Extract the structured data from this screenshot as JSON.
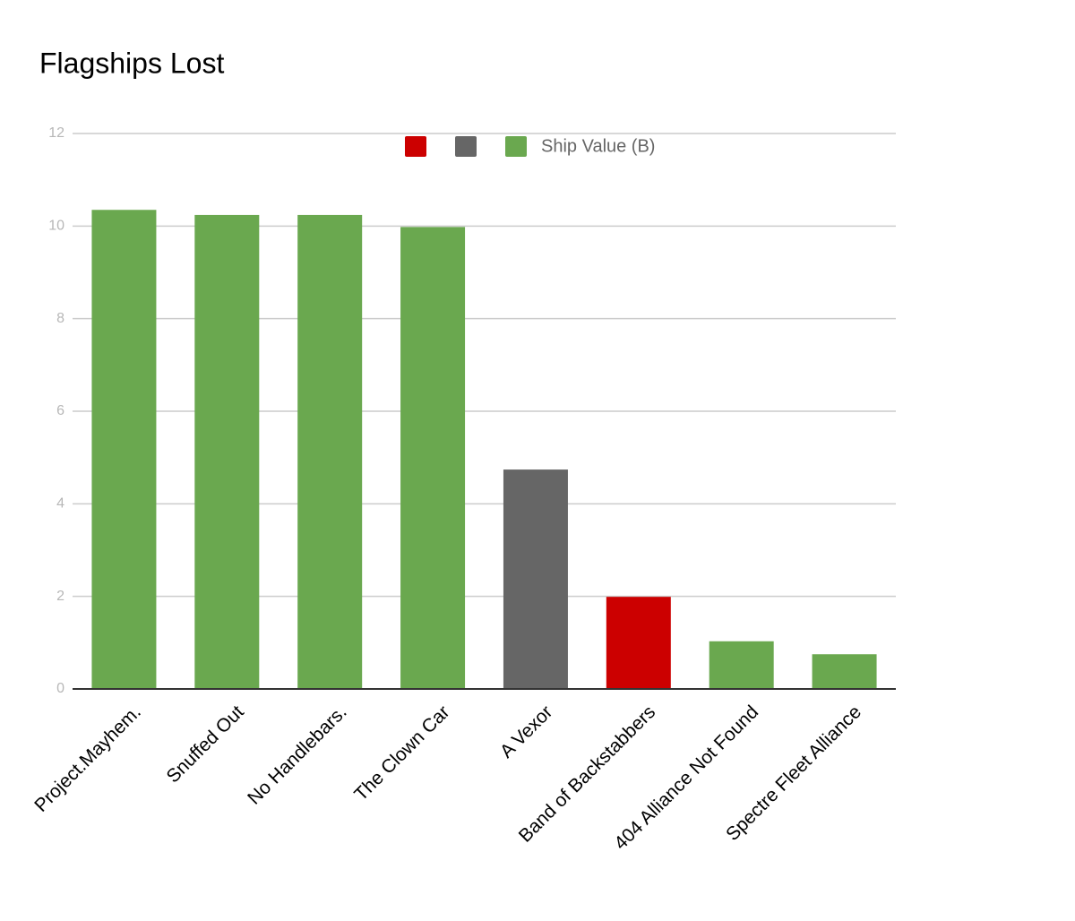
{
  "chart_data": {
    "type": "bar",
    "title": "Flagships Lost",
    "categories": [
      "Project.Mayhem.",
      "Snuffed Out",
      "No Handlebars.",
      "The Clown Car",
      "A Vexor",
      "Band of Backstabbers",
      "404 Alliance Not Found",
      "Spectre Fleet Alliance"
    ],
    "series": [
      {
        "color": "#cc0000",
        "values": [
          null,
          null,
          null,
          null,
          null,
          1.99,
          null,
          null
        ]
      },
      {
        "color": "#666666",
        "values": [
          null,
          null,
          null,
          null,
          4.74,
          null,
          null,
          null
        ]
      },
      {
        "name": "Ship Value (B)",
        "color": "#6aa84f",
        "values": [
          10.35,
          10.24,
          10.24,
          9.98,
          null,
          null,
          1.03,
          0.75
        ]
      }
    ],
    "ylim": [
      0,
      12
    ],
    "yticks": [
      0,
      2,
      4,
      6,
      8,
      10,
      12
    ],
    "grid": true
  }
}
